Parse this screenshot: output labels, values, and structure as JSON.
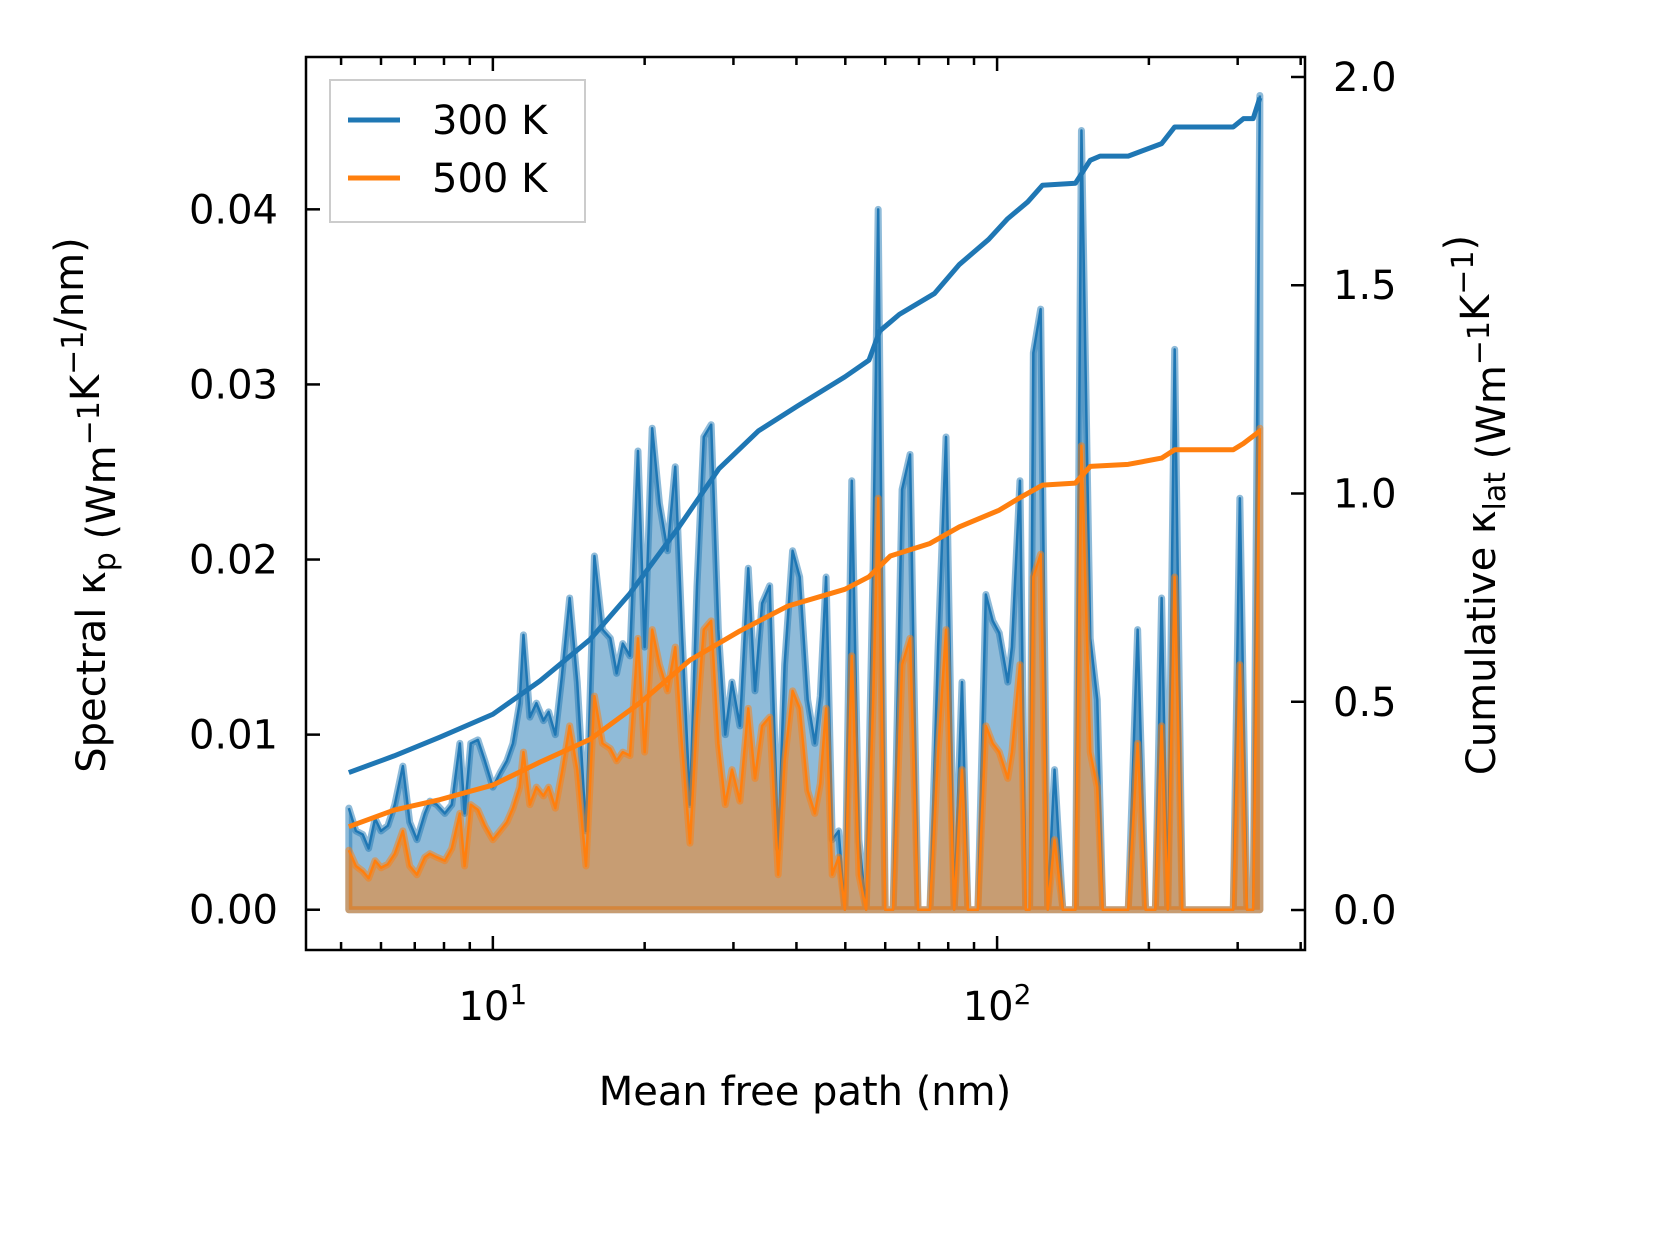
{
  "chart_data": {
    "type": "line",
    "title": "",
    "xlabel": "Mean free path (nm)",
    "xscale": "log",
    "xlim": [
      4.26,
      408
    ],
    "ylim_left": [
      -0.0023,
      0.0487
    ],
    "ylim_right": [
      -0.096,
      2.048
    ],
    "ylabel_left": [
      {
        "t": "Spectral κ"
      },
      {
        "t": "p",
        "s": "sub"
      },
      {
        "t": " (Wm"
      },
      {
        "t": "−1",
        "s": "sup"
      },
      {
        "t": "K"
      },
      {
        "t": "−1",
        "s": "sup"
      },
      {
        "t": "/nm)"
      }
    ],
    "ylabel_right": [
      {
        "t": "Cumulative κ"
      },
      {
        "t": "lat",
        "s": "sub"
      },
      {
        "t": " (Wm"
      },
      {
        "t": "−1",
        "s": "sup"
      },
      {
        "t": "K"
      },
      {
        "t": "−1",
        "s": "sup"
      },
      {
        "t": ")"
      }
    ],
    "xticks": [
      {
        "value": 10,
        "base": "10",
        "exp": "1"
      },
      {
        "value": 100,
        "base": "10",
        "exp": "2"
      }
    ],
    "yticks_left": [
      {
        "value": 0,
        "label": "0.00"
      },
      {
        "value": 0.01,
        "label": "0.01"
      },
      {
        "value": 0.02,
        "label": "0.02"
      },
      {
        "value": 0.03,
        "label": "0.03"
      },
      {
        "value": 0.04,
        "label": "0.04"
      }
    ],
    "yticks_right": [
      {
        "value": 0,
        "label": "0.0"
      },
      {
        "value": 0.5,
        "label": "0.5"
      },
      {
        "value": 1.0,
        "label": "1.0"
      },
      {
        "value": 1.5,
        "label": "1.5"
      },
      {
        "value": 2.0,
        "label": "2.0"
      }
    ],
    "legend": {
      "placement": "top-left",
      "entries": [
        {
          "name": "300 K",
          "color": "#1f77b4"
        },
        {
          "name": "500 K",
          "color": "#ff7f0e"
        }
      ]
    },
    "grid": false,
    "spectral": {
      "x": [
        5.18,
        5.35,
        5.52,
        5.67,
        5.84,
        6.0,
        6.19,
        6.39,
        6.63,
        6.84,
        7.07,
        7.33,
        7.5,
        7.74,
        8.03,
        8.29,
        8.6,
        8.79,
        9.04,
        9.34,
        9.64,
        10,
        10.33,
        10.66,
        10.96,
        11.3,
        11.5,
        11.84,
        12.2,
        12.6,
        12.9,
        13.3,
        13.7,
        14.2,
        14.7,
        15.3,
        15.9,
        16.5,
        17.1,
        17.6,
        18.1,
        18.7,
        19.4,
        20.0,
        20.7,
        21.4,
        22.2,
        23.0,
        23.7,
        24.6,
        25.4,
        26.2,
        27.1,
        28.0,
        28.9,
        29.8,
        30.9,
        32.1,
        33.1,
        34.2,
        35.4,
        36.8,
        37.9,
        39.3,
        40.6,
        42.1,
        43.5,
        44.6,
        45.8,
        47.1,
        48.5,
        49.9,
        51.5,
        53.2,
        55.0,
        56.8,
        58.1,
        60.0,
        62.2,
        64.8,
        67.2,
        69.7,
        73.6,
        76.4,
        79.2,
        82.2,
        85.2,
        87.5,
        91.6,
        95,
        98,
        101,
        105,
        107,
        111,
        114,
        116,
        118,
        122,
        126,
        130,
        135,
        143,
        147,
        153,
        158,
        162,
        182,
        190,
        197,
        206,
        212,
        218,
        225,
        233,
        294,
        303,
        313,
        322,
        332
      ],
      "series": [
        {
          "name": "300 K",
          "values": [
            0.0058,
            0.0045,
            0.0043,
            0.0035,
            0.0052,
            0.0045,
            0.0048,
            0.006,
            0.0082,
            0.005,
            0.004,
            0.0055,
            0.0062,
            0.006,
            0.0055,
            0.006,
            0.0095,
            0.0055,
            0.0095,
            0.0097,
            0.0085,
            0.007,
            0.0078,
            0.0085,
            0.0095,
            0.0118,
            0.0157,
            0.011,
            0.0118,
            0.0108,
            0.0113,
            0.01,
            0.0133,
            0.0178,
            0.013,
            0.0045,
            0.0202,
            0.016,
            0.0155,
            0.0135,
            0.0152,
            0.0145,
            0.0262,
            0.015,
            0.0275,
            0.0232,
            0.0205,
            0.0253,
            0.016,
            0.006,
            0.0185,
            0.027,
            0.0277,
            0.016,
            0.01,
            0.013,
            0.0105,
            0.0195,
            0.0125,
            0.0175,
            0.0185,
            0.0035,
            0.014,
            0.0205,
            0.019,
            0.012,
            0.0095,
            0.0122,
            0.019,
            0.004,
            0.0045,
            0,
            0.0245,
            0.004,
            0,
            0.02,
            0.04,
            0,
            0,
            0.024,
            0.026,
            0,
            0,
            0.015,
            0.027,
            0,
            0.013,
            0,
            0,
            0.018,
            0.0165,
            0.0158,
            0.013,
            0.015,
            0.0245,
            0,
            0,
            0.0318,
            0.0343,
            0,
            0.008,
            0,
            0,
            0.0445,
            0.0155,
            0.012,
            0,
            0,
            0.016,
            0,
            0,
            0.0178,
            0,
            0.032,
            0,
            0,
            0.0235,
            0,
            0,
            0.0465
          ]
        },
        {
          "name": "500 K",
          "values": [
            0.0034,
            0.0025,
            0.0022,
            0.0018,
            0.0028,
            0.0024,
            0.0026,
            0.0032,
            0.0045,
            0.0025,
            0.002,
            0.003,
            0.0032,
            0.003,
            0.0028,
            0.0035,
            0.0055,
            0.0025,
            0.006,
            0.0057,
            0.0048,
            0.004,
            0.0045,
            0.005,
            0.0058,
            0.007,
            0.009,
            0.006,
            0.007,
            0.0065,
            0.007,
            0.0058,
            0.0078,
            0.0105,
            0.008,
            0.0025,
            0.0122,
            0.0095,
            0.0092,
            0.0085,
            0.009,
            0.0088,
            0.0155,
            0.009,
            0.016,
            0.014,
            0.0125,
            0.015,
            0.0095,
            0.0038,
            0.011,
            0.016,
            0.0165,
            0.0095,
            0.006,
            0.008,
            0.0062,
            0.0115,
            0.0075,
            0.0105,
            0.011,
            0.002,
            0.0085,
            0.0125,
            0.0115,
            0.0068,
            0.0055,
            0.0072,
            0.0115,
            0.002,
            0.003,
            0,
            0.0145,
            0.002,
            0,
            0.012,
            0.0235,
            0,
            0,
            0.014,
            0.0155,
            0,
            0,
            0.009,
            0.016,
            0,
            0.008,
            0,
            0,
            0.0105,
            0.0095,
            0.009,
            0.0075,
            0.009,
            0.014,
            0,
            0,
            0.019,
            0.0203,
            0,
            0.004,
            0,
            0,
            0.0265,
            0.009,
            0.007,
            0,
            0,
            0.0095,
            0,
            0,
            0.0105,
            0,
            0.019,
            0,
            0,
            0.014,
            0,
            0,
            0.0275
          ]
        }
      ]
    },
    "cumulative": {
      "series": [
        {
          "name": "300 K",
          "x": [
            5.18,
            6.37,
            7.85,
            10,
            12.4,
            15.6,
            18.7,
            23.4,
            28.1,
            33.6,
            40.2,
            49.9,
            55.7,
            58.5,
            64,
            75.1,
            84.2,
            96.2,
            105,
            115,
            123,
            143,
            153,
            160,
            182,
            212,
            225,
            294,
            308,
            322,
            332
          ],
          "values": [
            0.33,
            0.37,
            0.415,
            0.47,
            0.55,
            0.65,
            0.76,
            0.92,
            1.06,
            1.15,
            1.21,
            1.28,
            1.32,
            1.39,
            1.43,
            1.48,
            1.55,
            1.61,
            1.66,
            1.7,
            1.74,
            1.745,
            1.8,
            1.81,
            1.81,
            1.84,
            1.88,
            1.88,
            1.9,
            1.9,
            1.95
          ]
        },
        {
          "name": "500 K",
          "x": [
            5.18,
            6.37,
            7.85,
            10,
            12.4,
            15.6,
            19.7,
            24.6,
            30.9,
            38.5,
            49.9,
            55.7,
            61.4,
            73.6,
            84.2,
            101,
            111,
            123,
            143,
            153,
            182,
            212,
            225,
            294,
            308,
            332
          ],
          "values": [
            0.2,
            0.24,
            0.265,
            0.3,
            0.355,
            0.41,
            0.5,
            0.6,
            0.67,
            0.73,
            0.77,
            0.8,
            0.85,
            0.88,
            0.92,
            0.96,
            0.99,
            1.02,
            1.025,
            1.065,
            1.07,
            1.085,
            1.105,
            1.105,
            1.12,
            1.15
          ]
        }
      ]
    }
  }
}
